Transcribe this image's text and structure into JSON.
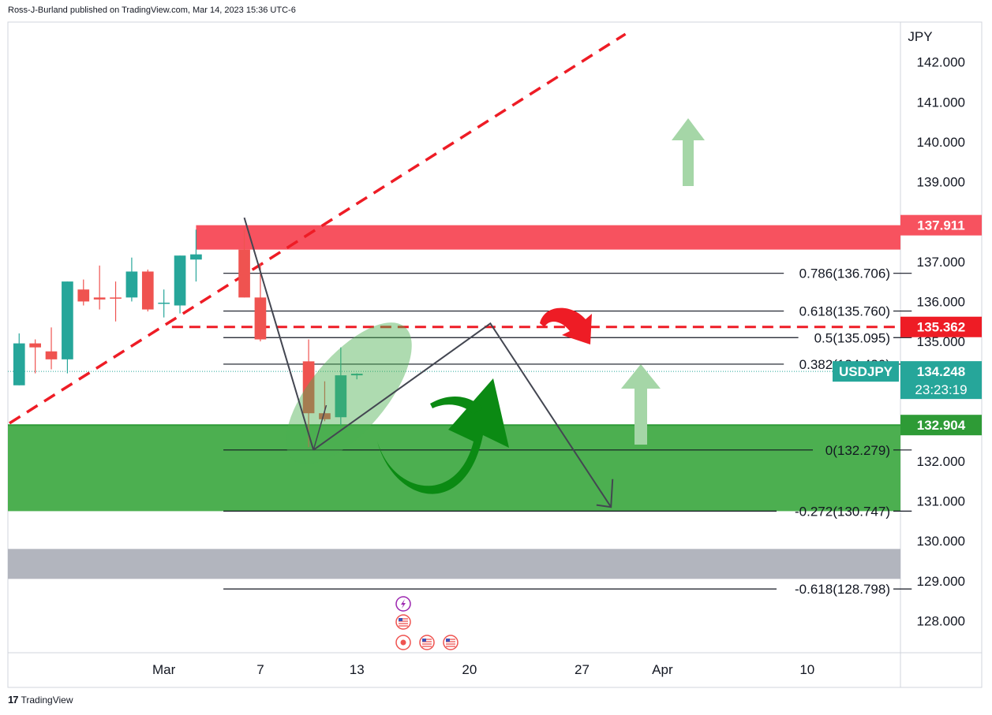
{
  "header": {
    "publisher_line": "Ross-J-Burland published on TradingView.com, Mar 14, 2023 15:36 UTC-6"
  },
  "footer": {
    "logo": "17",
    "brand": "TradingView"
  },
  "chart_data": {
    "type": "candlestick",
    "symbol": "USDJPY",
    "currency": "JPY",
    "price_axis": {
      "ticks": [
        "142.000",
        "141.000",
        "140.000",
        "139.000",
        "137.000",
        "136.000",
        "135.000",
        "132.000",
        "131.000",
        "130.000",
        "129.000",
        "128.000"
      ],
      "range": [
        127.2,
        143.0
      ]
    },
    "time_axis": {
      "labels": [
        {
          "text": "Mar",
          "day": 1
        },
        {
          "text": "7",
          "day": 7
        },
        {
          "text": "13",
          "day": 13
        },
        {
          "text": "20",
          "day": 20
        },
        {
          "text": "27",
          "day": 27
        },
        {
          "text": "Apr",
          "day": 32
        },
        {
          "text": "10",
          "day": 41
        }
      ],
      "day_range": [
        -8.7,
        46.8
      ]
    },
    "candles": [
      {
        "day": -8,
        "open": 133.9,
        "high": 135.2,
        "low": 133.9,
        "close": 134.95
      },
      {
        "day": -7,
        "open": 134.95,
        "high": 135.05,
        "low": 134.2,
        "close": 134.85
      },
      {
        "day": -6,
        "open": 134.75,
        "high": 135.35,
        "low": 134.3,
        "close": 134.55
      },
      {
        "day": -5,
        "open": 134.55,
        "high": 136.5,
        "low": 134.2,
        "close": 136.5
      },
      {
        "day": -4,
        "open": 136.3,
        "high": 136.55,
        "low": 135.9,
        "close": 136.0
      },
      {
        "day": -3,
        "open": 136.1,
        "high": 136.9,
        "low": 135.8,
        "close": 136.05
      },
      {
        "day": -2,
        "open": 136.1,
        "high": 136.5,
        "low": 135.5,
        "close": 136.07
      },
      {
        "day": -1,
        "open": 136.1,
        "high": 137.1,
        "low": 136.0,
        "close": 136.75
      },
      {
        "day": 0,
        "open": 136.75,
        "high": 136.8,
        "low": 135.75,
        "close": 135.8
      },
      {
        "day": 1,
        "open": 135.95,
        "high": 136.3,
        "low": 135.6,
        "close": 135.97
      },
      {
        "day": 2,
        "open": 135.9,
        "high": 137.15,
        "low": 135.7,
        "close": 137.15
      },
      {
        "day": 3,
        "open": 137.05,
        "high": 137.8,
        "low": 136.5,
        "close": 137.18
      },
      {
        "day": 6,
        "open": 137.3,
        "high": 137.8,
        "low": 136.1,
        "close": 136.1
      },
      {
        "day": 7,
        "open": 136.1,
        "high": 136.95,
        "low": 135.0,
        "close": 135.05
      },
      {
        "day": 10,
        "open": 134.5,
        "high": 135.05,
        "low": 132.35,
        "close": 133.2
      },
      {
        "day": 11,
        "open": 133.2,
        "high": 134.0,
        "low": 133.0,
        "close": 133.05
      },
      {
        "day": 12,
        "open": 133.1,
        "high": 134.85,
        "low": 132.9,
        "close": 134.15
      },
      {
        "day": 13,
        "open": 134.15,
        "high": 134.2,
        "low": 134.05,
        "close": 134.19
      }
    ],
    "support_zone": {
      "from": 130.747,
      "to": 132.904,
      "label": "132.904",
      "color": "#4caf50"
    },
    "resistance_zone": {
      "from": 137.3,
      "to": 137.911,
      "label": "137.911",
      "color": "#f7525f"
    },
    "gray_zone": {
      "from": 129.05,
      "to": 129.8
    },
    "dashed_level": {
      "price": 135.362,
      "label": "135.362"
    },
    "current_price": {
      "symbol": "USDJPY",
      "price": "134.248",
      "countdown": "23:23:19",
      "value": 134.248
    },
    "fib_levels": [
      {
        "label": "0.786(136.706)",
        "price": 136.706
      },
      {
        "label": "0.618(135.760)",
        "price": 135.76
      },
      {
        "label": "0.5(135.095)",
        "price": 135.095
      },
      {
        "label": "0.382(134.430)",
        "price": 134.43
      },
      {
        "label": "0(132.279)",
        "price": 132.279
      },
      {
        "label": "-0.272(130.747)",
        "price": 130.747
      },
      {
        "label": "-0.618(128.798)",
        "price": 128.798
      }
    ],
    "fib_day_range": [
      4.7,
      47.5
    ],
    "trendline": {
      "from": {
        "day": -8.6,
        "price": 132.95
      },
      "to": {
        "day": 29.7,
        "price": 142.7
      }
    },
    "event_icons": [
      "lightning-event-icon",
      "us-flag-event-icon",
      "record-event-icon",
      "us-flag-event-icon",
      "us-flag-event-icon"
    ],
    "colors": {
      "up": "#26a69a",
      "down": "#ef5350",
      "zone_green": "#4caf50",
      "zone_red": "#f7525f",
      "accent_arrow_green": "#a5d6a7"
    }
  }
}
